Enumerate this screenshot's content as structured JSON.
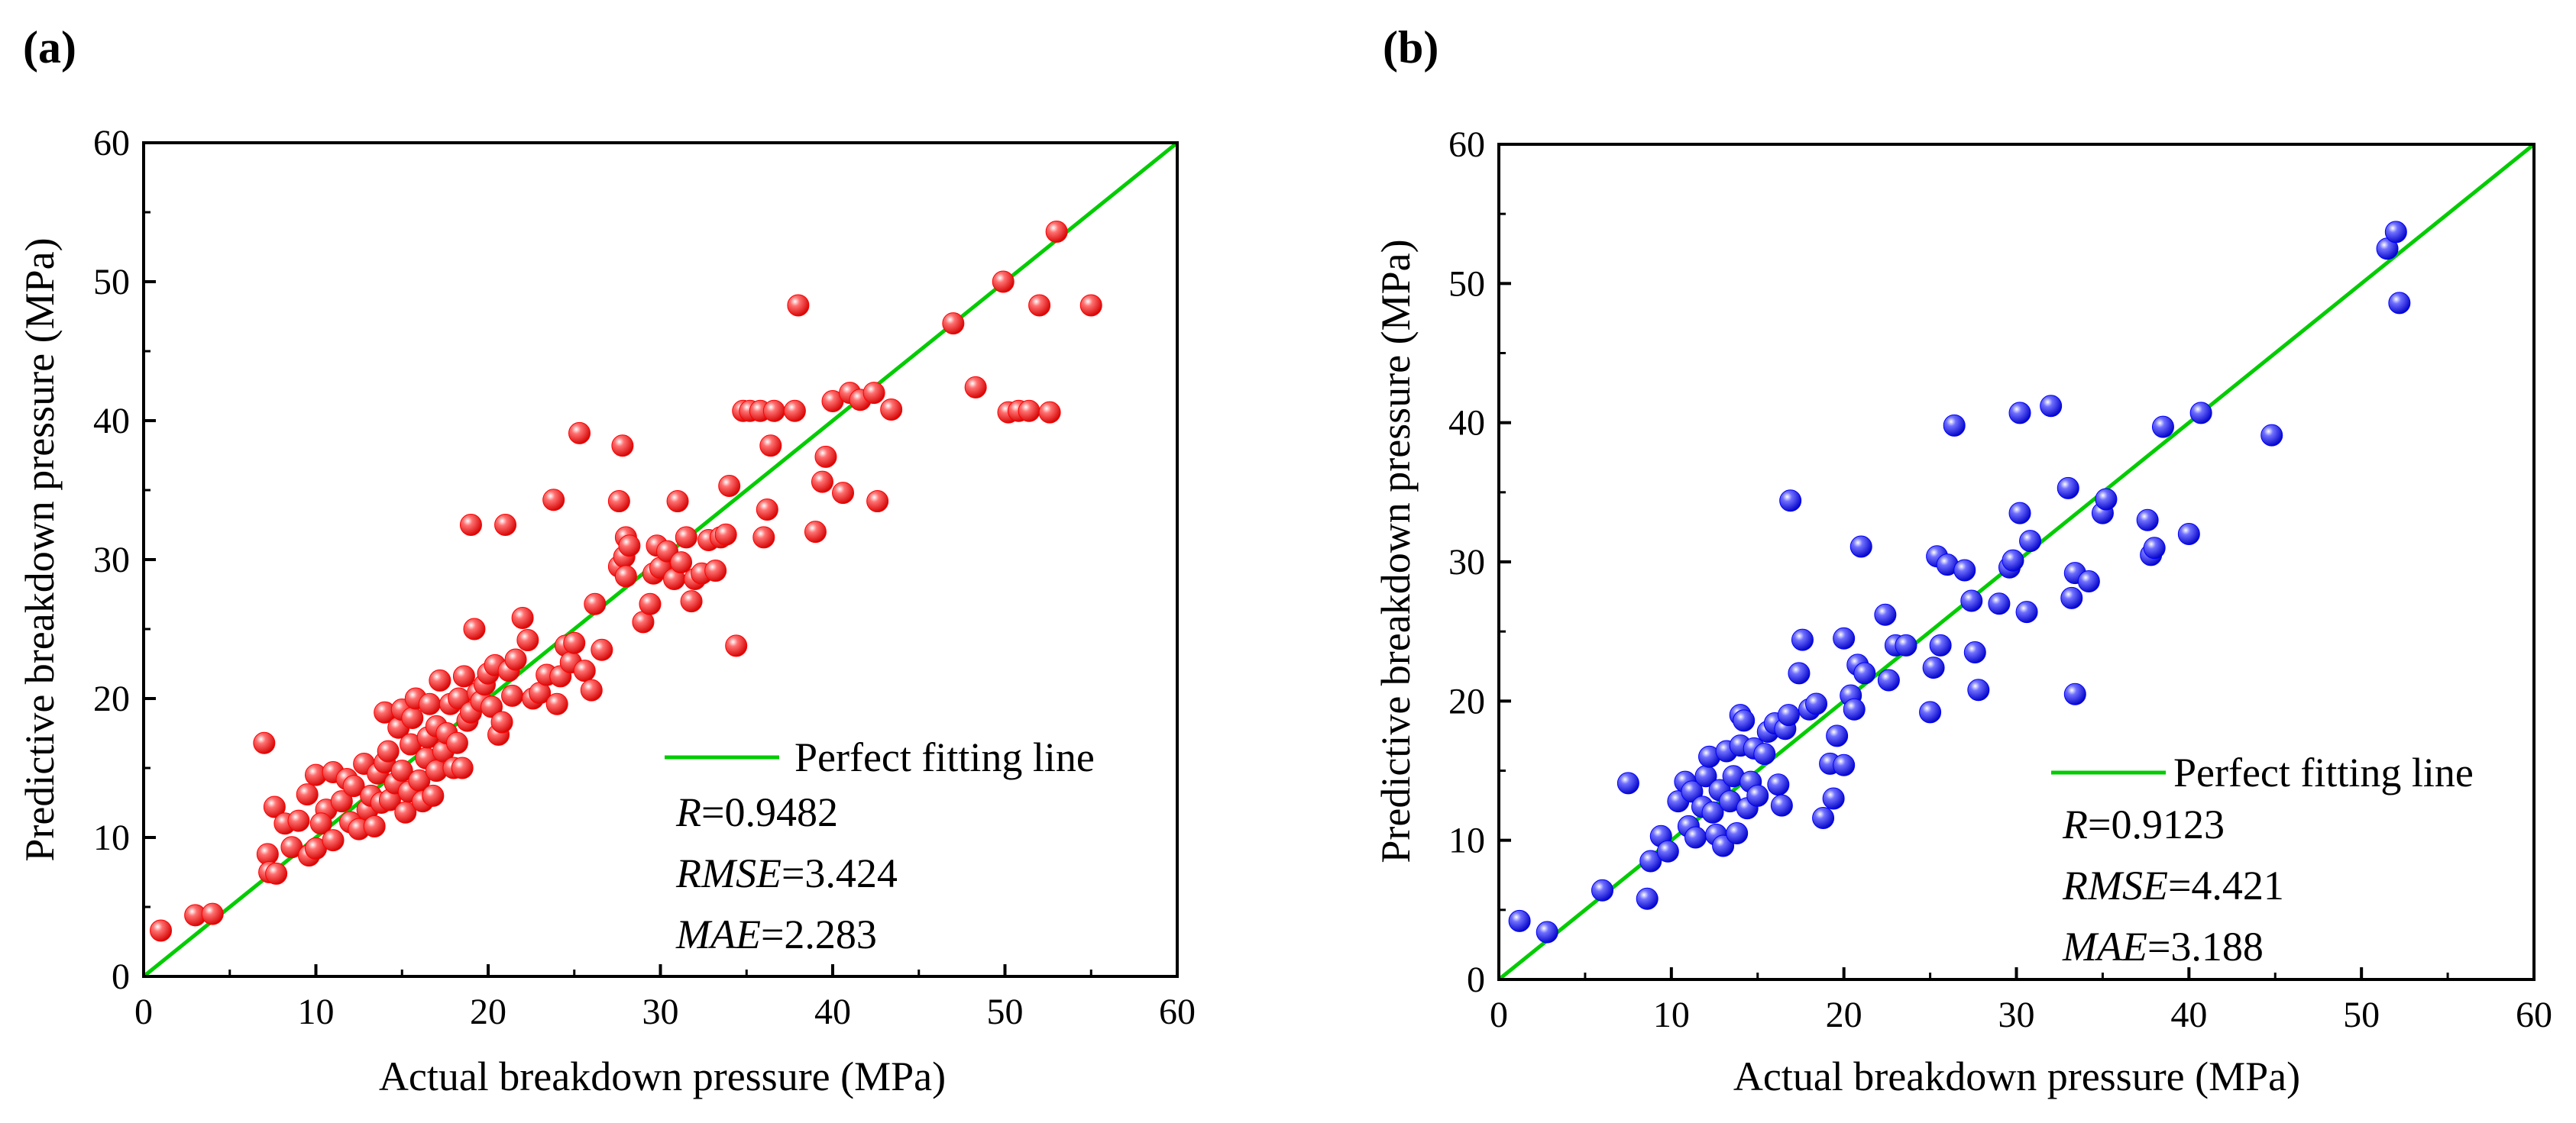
{
  "chart_data": [
    {
      "type": "scatter",
      "panel_label": "(a)",
      "xlabel": "Actual breakdown pressure (MPa)",
      "ylabel": "Predictive breakdown pressure (MPa)",
      "xlim": [
        0,
        60
      ],
      "ylim": [
        0,
        60
      ],
      "xticks": [
        "0",
        "10",
        "20",
        "30",
        "40",
        "50",
        "60"
      ],
      "yticks": [
        "0",
        "10",
        "20",
        "30",
        "40",
        "50",
        "60"
      ],
      "grid": false,
      "marker_color": "#ff0000",
      "line_color": "#00cc00",
      "legend": {
        "label": "Perfect fitting line",
        "position": "bottom-right"
      },
      "stats": [
        {
          "name": "R",
          "value": "=0.9482"
        },
        {
          "name": "RMSE",
          "value": "=3.424"
        },
        {
          "name": "MAE",
          "value": "=2.283"
        }
      ],
      "line": {
        "x": [
          0,
          60
        ],
        "y": [
          0,
          60
        ]
      },
      "points": [
        [
          1.0,
          3.3
        ],
        [
          3.0,
          4.4
        ],
        [
          4.0,
          4.5
        ],
        [
          7.0,
          16.8
        ],
        [
          7.2,
          8.8
        ],
        [
          7.3,
          7.5
        ],
        [
          7.7,
          7.4
        ],
        [
          7.6,
          12.2
        ],
        [
          8.2,
          11.0
        ],
        [
          9.0,
          11.2
        ],
        [
          8.6,
          9.3
        ],
        [
          9.6,
          8.7
        ],
        [
          10.0,
          9.2
        ],
        [
          9.5,
          13.1
        ],
        [
          10.0,
          14.5
        ],
        [
          10.6,
          12.0
        ],
        [
          10.3,
          11.0
        ],
        [
          11.0,
          14.7
        ],
        [
          11.0,
          9.8
        ],
        [
          11.5,
          12.6
        ],
        [
          11.8,
          14.2
        ],
        [
          12.0,
          11.1
        ],
        [
          12.2,
          13.7
        ],
        [
          12.5,
          10.6
        ],
        [
          12.8,
          15.3
        ],
        [
          13.0,
          12.0
        ],
        [
          13.2,
          13.0
        ],
        [
          13.4,
          10.8
        ],
        [
          13.6,
          14.6
        ],
        [
          13.8,
          12.5
        ],
        [
          14.0,
          19.0
        ],
        [
          14.0,
          15.4
        ],
        [
          14.2,
          16.2
        ],
        [
          14.3,
          12.7
        ],
        [
          14.6,
          13.9
        ],
        [
          14.8,
          17.9
        ],
        [
          15.0,
          14.8
        ],
        [
          15.0,
          19.2
        ],
        [
          15.2,
          11.8
        ],
        [
          15.4,
          13.3
        ],
        [
          15.5,
          16.7
        ],
        [
          15.6,
          18.6
        ],
        [
          15.8,
          20.0
        ],
        [
          16.0,
          14.1
        ],
        [
          16.2,
          12.6
        ],
        [
          16.4,
          15.7
        ],
        [
          16.5,
          17.2
        ],
        [
          16.6,
          19.6
        ],
        [
          16.8,
          13.0
        ],
        [
          17.0,
          14.8
        ],
        [
          17.0,
          18.0
        ],
        [
          17.2,
          21.3
        ],
        [
          17.4,
          16.2
        ],
        [
          17.6,
          17.5
        ],
        [
          17.8,
          19.6
        ],
        [
          18.0,
          15.0
        ],
        [
          18.2,
          16.8
        ],
        [
          18.3,
          20.0
        ],
        [
          18.5,
          15.0
        ],
        [
          18.6,
          21.6
        ],
        [
          18.8,
          18.4
        ],
        [
          19.0,
          19.0
        ],
        [
          19.0,
          32.5
        ],
        [
          19.2,
          25.0
        ],
        [
          19.4,
          20.4
        ],
        [
          19.6,
          19.8
        ],
        [
          19.8,
          21.0
        ],
        [
          20.0,
          21.8
        ],
        [
          20.2,
          19.4
        ],
        [
          20.4,
          22.4
        ],
        [
          20.6,
          17.4
        ],
        [
          20.8,
          18.3
        ],
        [
          21.0,
          32.5
        ],
        [
          21.2,
          22.0
        ],
        [
          21.4,
          20.2
        ],
        [
          21.6,
          22.8
        ],
        [
          22.0,
          25.8
        ],
        [
          22.3,
          24.2
        ],
        [
          22.6,
          20.0
        ],
        [
          23.0,
          20.4
        ],
        [
          23.4,
          21.7
        ],
        [
          23.8,
          34.3
        ],
        [
          24.0,
          19.6
        ],
        [
          24.2,
          21.6
        ],
        [
          24.5,
          23.8
        ],
        [
          24.8,
          22.6
        ],
        [
          25.0,
          24.0
        ],
        [
          25.3,
          39.1
        ],
        [
          25.6,
          22.0
        ],
        [
          26.0,
          20.6
        ],
        [
          26.2,
          26.8
        ],
        [
          26.6,
          23.5
        ],
        [
          27.6,
          29.5
        ],
        [
          27.6,
          34.2
        ],
        [
          27.8,
          38.2
        ],
        [
          27.9,
          30.2
        ],
        [
          28.0,
          28.8
        ],
        [
          28.0,
          31.6
        ],
        [
          28.2,
          31.0
        ],
        [
          29.0,
          25.5
        ],
        [
          29.4,
          26.8
        ],
        [
          29.6,
          29.0
        ],
        [
          29.8,
          31.0
        ],
        [
          30.0,
          29.4
        ],
        [
          30.4,
          30.6
        ],
        [
          30.8,
          28.6
        ],
        [
          31.0,
          34.2
        ],
        [
          31.2,
          29.8
        ],
        [
          31.5,
          31.6
        ],
        [
          31.8,
          27.0
        ],
        [
          32.0,
          28.6
        ],
        [
          32.4,
          29.0
        ],
        [
          32.8,
          31.4
        ],
        [
          33.2,
          29.2
        ],
        [
          33.5,
          31.6
        ],
        [
          33.8,
          31.8
        ],
        [
          34.0,
          35.3
        ],
        [
          34.4,
          23.8
        ],
        [
          34.8,
          40.7
        ],
        [
          35.2,
          40.7
        ],
        [
          35.8,
          40.7
        ],
        [
          36.0,
          31.6
        ],
        [
          36.2,
          33.6
        ],
        [
          36.4,
          38.2
        ],
        [
          36.6,
          40.7
        ],
        [
          37.8,
          40.7
        ],
        [
          38.0,
          48.3
        ],
        [
          39.0,
          32.0
        ],
        [
          39.4,
          35.6
        ],
        [
          39.6,
          37.4
        ],
        [
          40.0,
          41.4
        ],
        [
          40.6,
          34.8
        ],
        [
          41.0,
          42.0
        ],
        [
          41.6,
          41.5
        ],
        [
          42.4,
          42.0
        ],
        [
          42.6,
          34.2
        ],
        [
          43.4,
          40.8
        ],
        [
          47.0,
          47.0
        ],
        [
          48.3,
          42.4
        ],
        [
          49.9,
          50.0
        ],
        [
          50.2,
          40.6
        ],
        [
          50.8,
          40.7
        ],
        [
          51.4,
          40.7
        ],
        [
          52.0,
          48.3
        ],
        [
          52.6,
          40.6
        ],
        [
          53.0,
          53.6
        ],
        [
          55.0,
          48.3
        ]
      ]
    },
    {
      "type": "scatter",
      "panel_label": "(b)",
      "xlabel": "Actual breakdown pressure (MPa)",
      "ylabel": "Predictive breakdown pressure (MPa)",
      "xlim": [
        0,
        60
      ],
      "ylim": [
        0,
        60
      ],
      "xticks": [
        "0",
        "10",
        "20",
        "30",
        "40",
        "50",
        "60"
      ],
      "yticks": [
        "0",
        "10",
        "20",
        "30",
        "40",
        "50",
        "60"
      ],
      "grid": false,
      "marker_color": "#0000ff",
      "line_color": "#00cc00",
      "legend": {
        "label": "Perfect fitting line",
        "position": "bottom-right"
      },
      "stats": [
        {
          "name": "R",
          "value": "=0.9123"
        },
        {
          "name": "RMSE",
          "value": "=4.421"
        },
        {
          "name": "MAE",
          "value": "=3.188"
        }
      ],
      "line": {
        "x": [
          0,
          60
        ],
        "y": [
          0,
          60
        ]
      },
      "points": [
        [
          1.2,
          4.2
        ],
        [
          2.8,
          3.4
        ],
        [
          6.0,
          6.4
        ],
        [
          7.5,
          14.1
        ],
        [
          8.6,
          5.8
        ],
        [
          8.8,
          8.5
        ],
        [
          9.4,
          10.3
        ],
        [
          9.8,
          9.2
        ],
        [
          10.4,
          12.8
        ],
        [
          10.8,
          14.2
        ],
        [
          11.0,
          11.0
        ],
        [
          11.2,
          13.5
        ],
        [
          11.4,
          10.2
        ],
        [
          11.8,
          12.4
        ],
        [
          12.0,
          14.6
        ],
        [
          12.2,
          16.0
        ],
        [
          12.4,
          12.0
        ],
        [
          12.6,
          10.4
        ],
        [
          12.8,
          13.6
        ],
        [
          13.0,
          9.6
        ],
        [
          13.2,
          16.4
        ],
        [
          13.4,
          12.8
        ],
        [
          13.6,
          14.6
        ],
        [
          13.8,
          10.5
        ],
        [
          14.0,
          19.0
        ],
        [
          14.0,
          16.8
        ],
        [
          14.2,
          18.6
        ],
        [
          14.4,
          12.3
        ],
        [
          14.6,
          14.2
        ],
        [
          14.8,
          16.6
        ],
        [
          15.0,
          13.2
        ],
        [
          15.4,
          16.2
        ],
        [
          15.6,
          17.8
        ],
        [
          16.0,
          18.4
        ],
        [
          16.2,
          14.0
        ],
        [
          16.4,
          12.5
        ],
        [
          16.6,
          18.0
        ],
        [
          16.8,
          19.0
        ],
        [
          16.9,
          34.4
        ],
        [
          17.4,
          22.0
        ],
        [
          17.6,
          24.4
        ],
        [
          18.0,
          19.4
        ],
        [
          18.4,
          19.8
        ],
        [
          18.8,
          11.6
        ],
        [
          19.2,
          15.5
        ],
        [
          19.4,
          13.0
        ],
        [
          19.6,
          17.5
        ],
        [
          20.0,
          15.4
        ],
        [
          20.0,
          24.5
        ],
        [
          20.4,
          20.4
        ],
        [
          20.6,
          19.4
        ],
        [
          20.8,
          22.6
        ],
        [
          21.0,
          31.1
        ],
        [
          21.2,
          22.0
        ],
        [
          22.4,
          26.2
        ],
        [
          22.6,
          21.5
        ],
        [
          23.0,
          24.0
        ],
        [
          23.6,
          24.0
        ],
        [
          25.0,
          19.2
        ],
        [
          25.2,
          22.4
        ],
        [
          25.4,
          30.4
        ],
        [
          25.6,
          24.0
        ],
        [
          26.0,
          29.8
        ],
        [
          26.4,
          39.8
        ],
        [
          27.0,
          29.4
        ],
        [
          27.4,
          27.2
        ],
        [
          27.6,
          23.5
        ],
        [
          27.8,
          20.8
        ],
        [
          29.0,
          27.0
        ],
        [
          29.6,
          29.6
        ],
        [
          29.8,
          30.1
        ],
        [
          30.2,
          40.7
        ],
        [
          30.2,
          33.5
        ],
        [
          30.6,
          26.4
        ],
        [
          30.8,
          31.5
        ],
        [
          32.0,
          41.2
        ],
        [
          33.0,
          35.3
        ],
        [
          33.2,
          27.4
        ],
        [
          33.4,
          20.5
        ],
        [
          33.4,
          29.2
        ],
        [
          34.2,
          28.6
        ],
        [
          35.0,
          33.5
        ],
        [
          35.2,
          34.5
        ],
        [
          37.6,
          33.0
        ],
        [
          37.8,
          30.5
        ],
        [
          38.0,
          31.0
        ],
        [
          38.5,
          39.7
        ],
        [
          40.0,
          32.0
        ],
        [
          40.7,
          40.7
        ],
        [
          44.8,
          39.1
        ],
        [
          51.5,
          52.5
        ],
        [
          52.0,
          53.7
        ],
        [
          52.2,
          48.6
        ]
      ]
    }
  ]
}
